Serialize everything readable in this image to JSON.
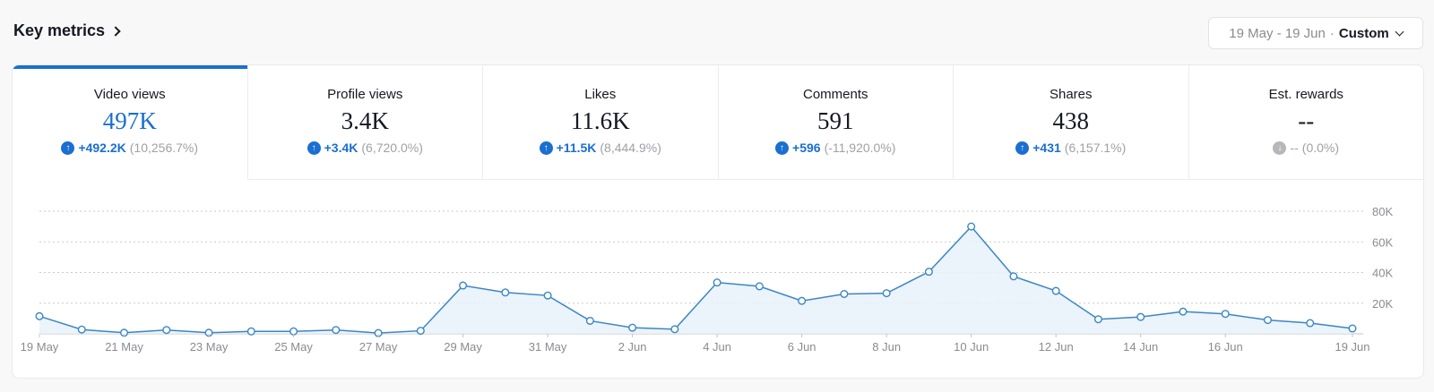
{
  "header": {
    "title": "Key metrics"
  },
  "date_filter": {
    "range": "19 May - 19 Jun",
    "separator": "·",
    "mode": "Custom"
  },
  "tabs": [
    {
      "label": "Video views",
      "value": "497K",
      "delta": "+492.2K",
      "pct": "(10,256.7%)",
      "active": true,
      "trend": "up"
    },
    {
      "label": "Profile views",
      "value": "3.4K",
      "delta": "+3.4K",
      "pct": "(6,720.0%)",
      "active": false,
      "trend": "up"
    },
    {
      "label": "Likes",
      "value": "11.6K",
      "delta": "+11.5K",
      "pct": "(8,444.9%)",
      "active": false,
      "trend": "up"
    },
    {
      "label": "Comments",
      "value": "591",
      "delta": "+596",
      "pct": "(-11,920.0%)",
      "active": false,
      "trend": "up"
    },
    {
      "label": "Shares",
      "value": "438",
      "delta": "+431",
      "pct": "(6,157.1%)",
      "active": false,
      "trend": "up"
    },
    {
      "label": "Est. rewards",
      "value": "--",
      "delta": "--",
      "pct": "(0.0%)",
      "active": false,
      "trend": "neutral"
    }
  ],
  "colors": {
    "accent": "#1a6fd1",
    "line": "#3a86c4",
    "fill": "#e7f1fa",
    "grid": "#c9c9cc"
  },
  "chart_data": {
    "type": "area",
    "x": [
      "19 May",
      "20 May",
      "21 May",
      "22 May",
      "23 May",
      "24 May",
      "25 May",
      "26 May",
      "27 May",
      "28 May",
      "29 May",
      "30 May",
      "31 May",
      "1 Jun",
      "2 Jun",
      "3 Jun",
      "4 Jun",
      "5 Jun",
      "6 Jun",
      "7 Jun",
      "8 Jun",
      "9 Jun",
      "10 Jun",
      "11 Jun",
      "12 Jun",
      "13 Jun",
      "14 Jun",
      "15 Jun",
      "16 Jun",
      "17 Jun",
      "18 Jun",
      "19 Jun"
    ],
    "x_tick_labels": [
      "19 May",
      "21 May",
      "23 May",
      "25 May",
      "27 May",
      "29 May",
      "31 May",
      "2 Jun",
      "4 Jun",
      "6 Jun",
      "8 Jun",
      "10 Jun",
      "12 Jun",
      "14 Jun",
      "16 Jun",
      "19 Jun"
    ],
    "series": [
      {
        "values": [
          11500,
          2800,
          700,
          2500,
          700,
          1600,
          1600,
          2500,
          500,
          2000,
          31500,
          27000,
          25000,
          8500,
          4000,
          3000,
          33500,
          31000,
          21500,
          26000,
          26500,
          40500,
          70000,
          37500,
          28000,
          9500,
          11000,
          14500,
          13000,
          9000,
          7000,
          3500
        ]
      }
    ],
    "y_ticks": [
      "20K",
      "40K",
      "60K",
      "80K"
    ],
    "ylim": [
      0,
      80000
    ],
    "grid": true
  }
}
